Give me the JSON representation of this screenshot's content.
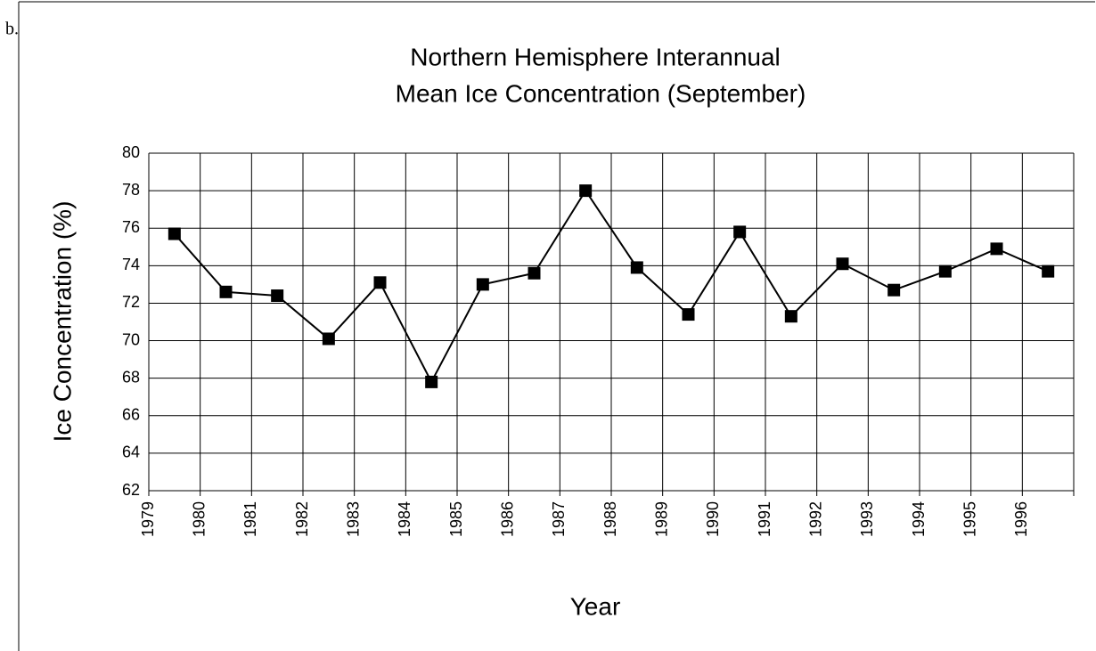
{
  "chart_data": {
    "type": "line",
    "annotations": [
      "b."
    ],
    "title": [
      "Northern Hemisphere Interannual",
      "Mean Ice Concentration (September)"
    ],
    "x_label": "Year",
    "y_label": "Ice Concentration (%)",
    "categories": [
      "1979",
      "1980",
      "1981",
      "1982",
      "1983",
      "1984",
      "1985",
      "1986",
      "1987",
      "1988",
      "1989",
      "1990",
      "1991",
      "1992",
      "1993",
      "1994",
      "1995",
      "1996"
    ],
    "values": [
      75.7,
      72.6,
      72.4,
      70.1,
      73.1,
      67.8,
      73.0,
      73.6,
      78.0,
      73.9,
      71.4,
      75.8,
      71.3,
      74.1,
      72.7,
      73.7,
      74.9,
      73.7
    ],
    "color": "#000000",
    "ylim": [
      62,
      80
    ],
    "yticks": [
      62,
      64,
      66,
      68,
      70,
      72,
      74,
      76,
      78,
      80
    ],
    "grid": true
  }
}
